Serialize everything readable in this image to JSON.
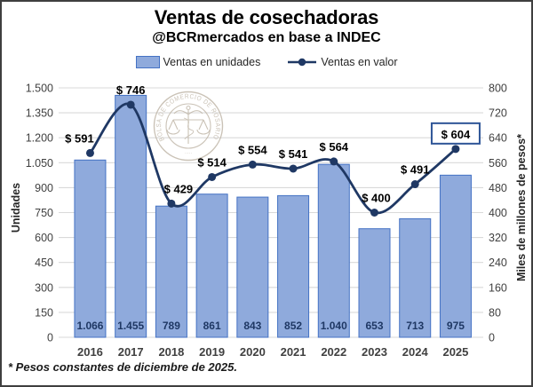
{
  "chart_data": {
    "type": "bar",
    "title": "Ventas de cosechadoras",
    "subtitle": "@BCRmercados en base a INDEC",
    "categories": [
      "2016",
      "2017",
      "2018",
      "2019",
      "2020",
      "2021",
      "2022",
      "2023",
      "2024",
      "2025"
    ],
    "series": [
      {
        "name": "Ventas en unidades",
        "type": "bar",
        "axis": "left",
        "values": [
          1066,
          1455,
          789,
          861,
          843,
          852,
          1040,
          653,
          713,
          975
        ],
        "labels": [
          "1.066",
          "1.455",
          "789",
          "861",
          "843",
          "852",
          "1.040",
          "653",
          "713",
          "975"
        ]
      },
      {
        "name": "Ventas en valor",
        "type": "line",
        "axis": "right",
        "values": [
          591,
          746,
          429,
          514,
          554,
          541,
          564,
          400,
          491,
          604
        ],
        "labels": [
          "$ 591",
          "$ 746",
          "$ 429",
          "$ 514",
          "$ 554",
          "$ 541",
          "$ 564",
          "$ 400",
          "$ 491",
          "$ 604"
        ],
        "highlight_last": true
      }
    ],
    "left_axis": {
      "title": "Unidades",
      "min": 0,
      "max": 1500,
      "step": 150,
      "ticks": [
        "1.500",
        "1.350",
        "1.200",
        "1.050",
        "900",
        "750",
        "600",
        "450",
        "300",
        "150",
        "0"
      ]
    },
    "right_axis": {
      "title": "Miles de millones de pesos*",
      "min": 0,
      "max": 800,
      "step": 80,
      "ticks": [
        "800",
        "720",
        "640",
        "560",
        "480",
        "400",
        "320",
        "240",
        "160",
        "80",
        "0"
      ]
    },
    "grid": "horizontal",
    "legend_position": "top",
    "footnote": "* Pesos constantes de diciembre de 2025.",
    "watermark": "BOLSA DE COMERCIO DE ROSARIO",
    "colors": {
      "bar_fill": "#8FAADC",
      "bar_border": "#4472C4",
      "line": "#1F3864",
      "bar_label": "#1F3864",
      "grid": "#D9D9D9",
      "axis_text": "#404040",
      "data_label": "#000000",
      "highlight_box_border": "#2E5597",
      "watermark": "#BDB3A4"
    }
  }
}
